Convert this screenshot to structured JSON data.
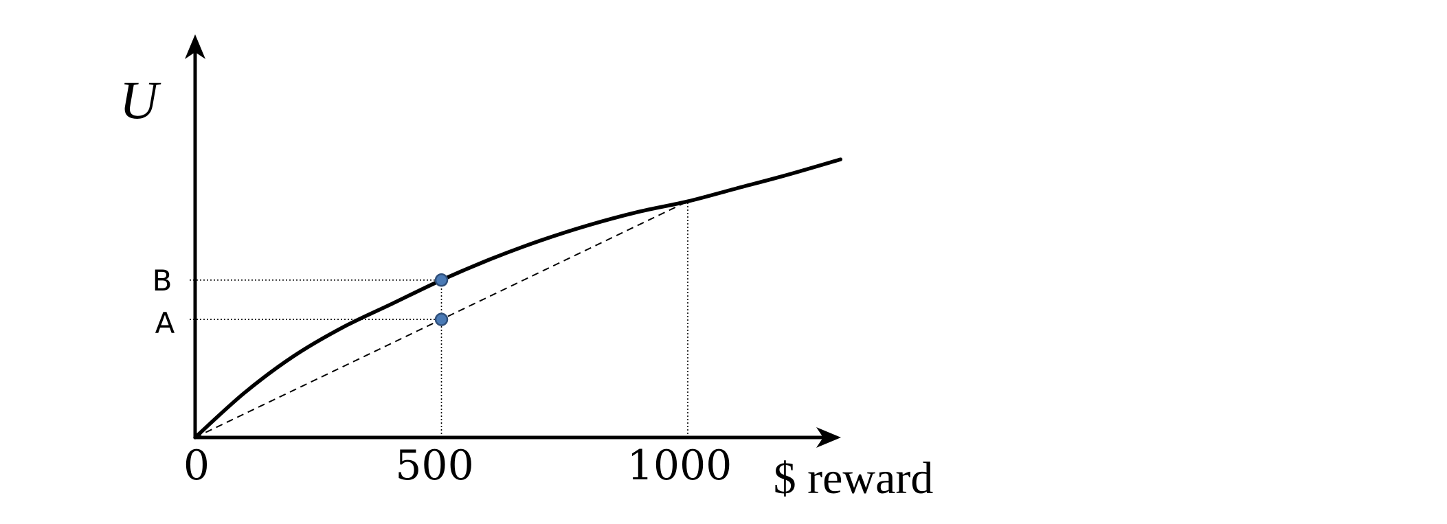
{
  "chart_data": {
    "type": "line",
    "ylabel": "U",
    "xlabel": "$ reward",
    "x_ticks": [
      "0",
      "500",
      "1000"
    ],
    "x_tick_values": [
      0,
      500,
      1000
    ],
    "xlim": [
      0,
      1310
    ],
    "ylim": [
      0,
      1.2
    ],
    "series": [
      {
        "style": "solid-curve",
        "x": [
          0,
          100,
          200,
          300,
          400,
          500,
          600,
          700,
          800,
          900,
          1000,
          1100,
          1200,
          1310
        ],
        "y": [
          0,
          0.17,
          0.31,
          0.42,
          0.51,
          0.6,
          0.68,
          0.75,
          0.81,
          0.86,
          0.9,
          0.95,
          1.0,
          1.06
        ]
      },
      {
        "style": "dashed-chord",
        "x": [
          0,
          1000
        ],
        "y": [
          0,
          0.9
        ]
      }
    ],
    "points": [
      {
        "label": "B",
        "x": 500,
        "y": 0.6
      },
      {
        "label": "A",
        "x": 500,
        "y": 0.45
      }
    ],
    "reference_lines": {
      "vertical_x": [
        500,
        1000
      ],
      "horizontal_to_points": [
        "B",
        "A"
      ]
    },
    "colors": {
      "axis": "#000000",
      "point_fill": "#4a7ab5"
    },
    "grid": false,
    "legend": "none"
  }
}
